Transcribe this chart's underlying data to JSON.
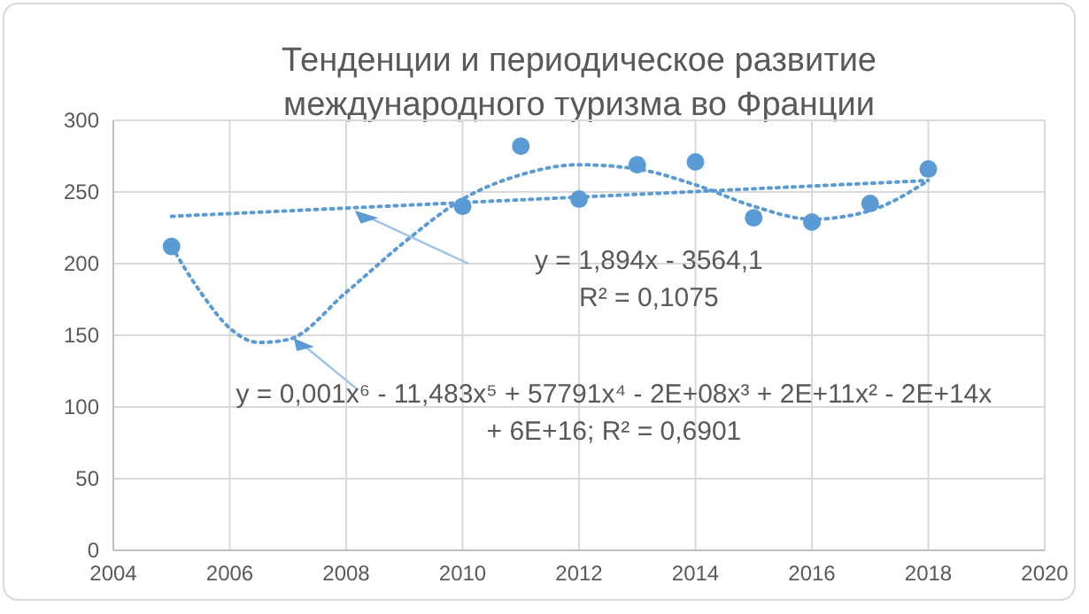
{
  "chart_data": {
    "type": "scatter",
    "title": "Тенденции и периодическое развитие\nмеждународного туризма во Франции",
    "xlim": [
      2004,
      2020
    ],
    "xticks": [
      2004,
      2006,
      2008,
      2010,
      2012,
      2014,
      2016,
      2018,
      2020
    ],
    "ylim": [
      0,
      300
    ],
    "yticks": [
      0,
      50,
      100,
      150,
      200,
      250,
      300
    ],
    "grid": true,
    "series": [
      {
        "marker": "circle",
        "color": "#5b9bd5",
        "x": [
          2005,
          2010,
          2011,
          2012,
          2013,
          2014,
          2015,
          2016,
          2017,
          2018
        ],
        "values": [
          212,
          240,
          282,
          245,
          269,
          271,
          232,
          229,
          242,
          266
        ]
      },
      {
        "type": "line",
        "line_style": "dotted",
        "marker": "none",
        "color": "#5b9bd5",
        "x": [
          2005,
          2018
        ],
        "values": [
          233,
          258
        ]
      },
      {
        "type": "line",
        "line_style": "dotted",
        "marker": "none",
        "color": "#5b9bd5",
        "x": [
          2005,
          2005.5,
          2006,
          2006.5,
          2007,
          2008,
          2009,
          2010,
          2011,
          2012,
          2013,
          2014,
          2015,
          2016,
          2017,
          2018
        ],
        "values": [
          212,
          180,
          155,
          145,
          147,
          180,
          215,
          245,
          262,
          269,
          266,
          255,
          240,
          231,
          237,
          258
        ]
      }
    ],
    "annotations": [
      "y = 1,894x - 3564,1\nR² = 0,1075",
      "y = 0,001x⁶ - 11,483x⁵ + 57791x⁴ - 2E+08x³ + 2E+11x² - 2E+14x\n+ 6E+16; R² = 0,6901"
    ]
  }
}
